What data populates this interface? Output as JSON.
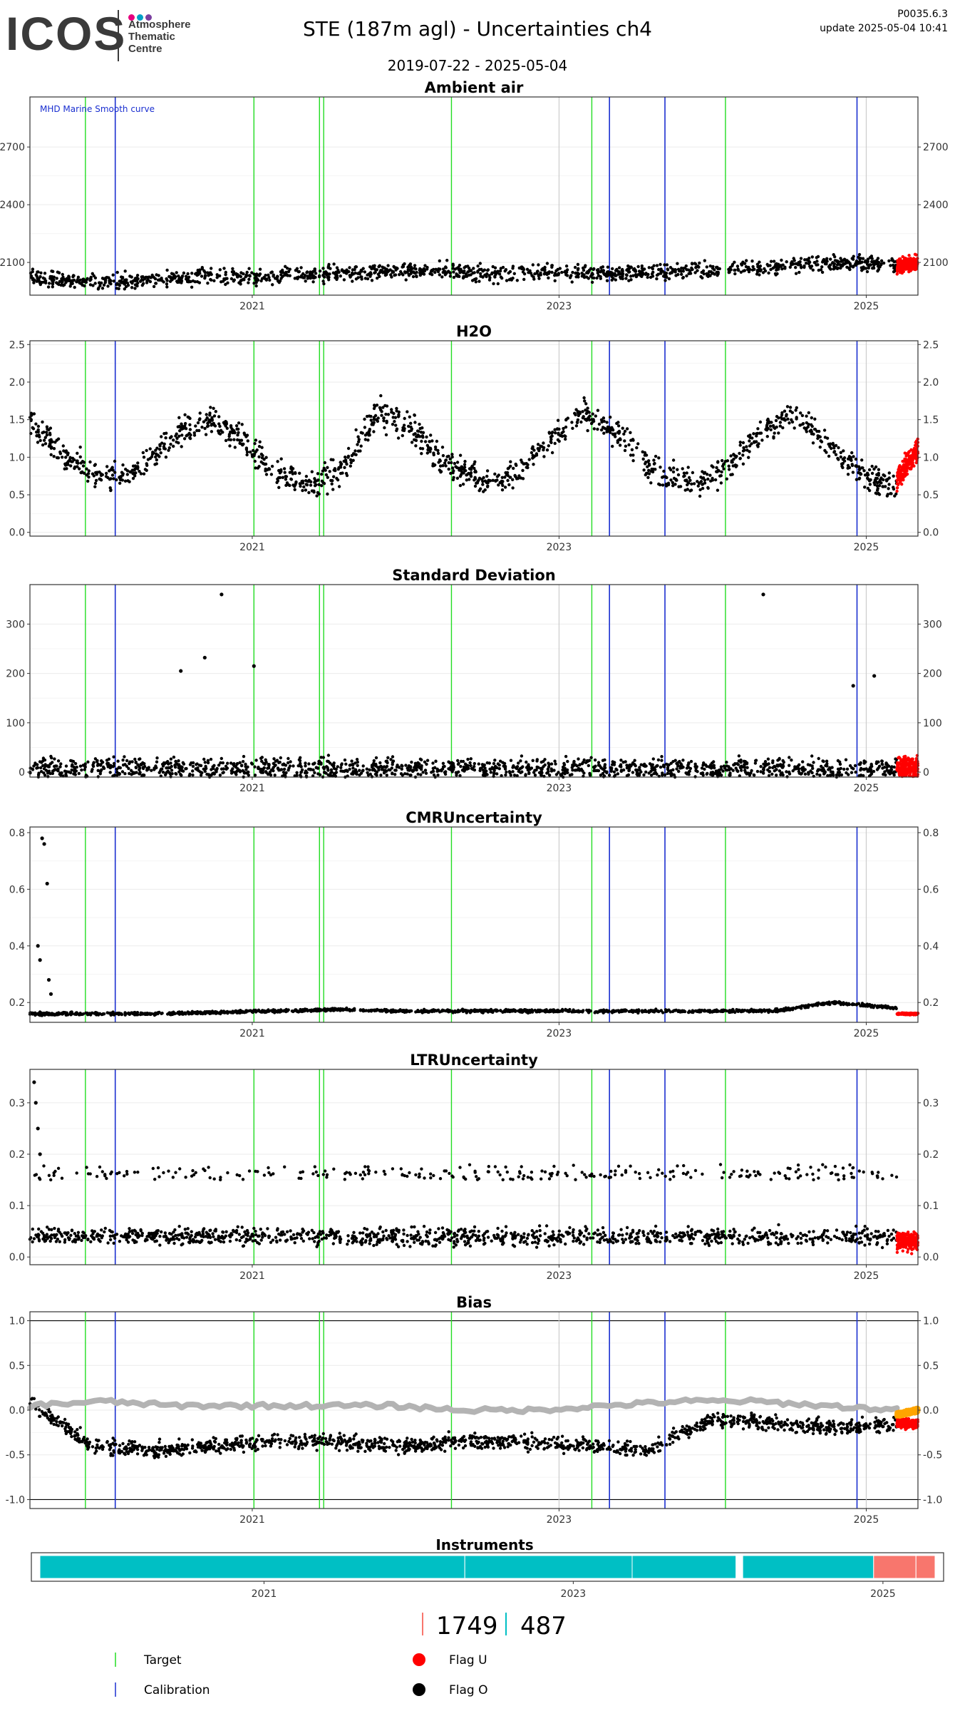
{
  "header": {
    "logo_text": "ICOS",
    "logo_subtitle": "Atmosphere\nThematic\nCentre",
    "title": "STE  (187m agl) - Uncertainties ch4",
    "date_range": "2019-07-22 - 2025-05-04",
    "version": "P0035.6.3",
    "update": "update  2025-05-04 10:41"
  },
  "colors": {
    "target_line": "#22dd22",
    "calibration_line": "#1a2fd0",
    "neutral_line": "#cccccc",
    "flag_o": "#000000",
    "flag_u": "#ff0000",
    "smooth_curve": "#b3b3b3",
    "bias_orange": "#ffa500",
    "instrument_teal": "#00bfc4",
    "instrument_salmon": "#f8766d",
    "logo_dots": [
      "#e6007e",
      "#00a0c6",
      "#7a3fa0"
    ]
  },
  "chart_data": [
    {
      "type": "scatter",
      "title": "Ambient air",
      "annotation": "MHD Marine Smooth curve",
      "y_ticks": [
        2100,
        2400,
        2700
      ],
      "ylim": [
        1930,
        2960
      ],
      "x_ticks": [
        "2021",
        "2023",
        "2025"
      ],
      "series": [
        {
          "name": "Flag O",
          "x_range": [
            "2019-07-22",
            "2025-03-15"
          ],
          "baseline": [
            2020,
            2000,
            2010,
            2030,
            2020,
            2040,
            2050,
            2060,
            2040,
            2050,
            2040,
            2050,
            2070,
            2080,
            2100,
            2090
          ],
          "spread": 120
        },
        {
          "name": "Flag U",
          "x_range": [
            "2025-03-15",
            "2025-05-04"
          ],
          "baseline": [
            2080,
            2100
          ],
          "spread": 110
        }
      ],
      "gaps": [
        [
          "2024-01-20",
          "2024-02-05"
        ]
      ]
    },
    {
      "type": "scatter",
      "title": "H2O",
      "y_ticks": [
        0.0,
        0.5,
        1.0,
        1.5,
        2.0,
        2.5
      ],
      "ylim": [
        -0.05,
        2.55
      ],
      "x_ticks": [
        "2021",
        "2023",
        "2025"
      ],
      "series": [
        {
          "name": "Flag O",
          "x_range": [
            "2019-07-22",
            "2025-03-15"
          ],
          "baseline": [
            1.5,
            1.0,
            0.75,
            0.8,
            1.2,
            1.5,
            1.3,
            0.8,
            0.65,
            0.85,
            1.6,
            1.4,
            0.9,
            0.7,
            0.75,
            1.25,
            1.6,
            1.3,
            0.8,
            0.65,
            0.8,
            1.3,
            1.6,
            1.2,
            0.75,
            0.6
          ],
          "spread": 0.55
        },
        {
          "name": "Flag U",
          "x_range": [
            "2025-03-15",
            "2025-05-04"
          ],
          "baseline": [
            0.7,
            1.1
          ],
          "spread": 0.45
        }
      ]
    },
    {
      "type": "scatter",
      "title": "Standard Deviation",
      "y_ticks": [
        0,
        100,
        200,
        300
      ],
      "ylim": [
        -10,
        380
      ],
      "x_ticks": [
        "2021",
        "2023",
        "2025"
      ],
      "series": [
        {
          "name": "Flag O",
          "x_range": [
            "2019-07-22",
            "2025-03-15"
          ],
          "baseline": [
            8
          ],
          "spread": 60
        },
        {
          "name": "Flag U",
          "x_range": [
            "2025-03-15",
            "2025-05-04"
          ],
          "baseline": [
            10
          ],
          "spread": 60
        }
      ],
      "outliers": [
        [
          "2020-10-20",
          360
        ],
        [
          "2020-09-10",
          232
        ],
        [
          "2020-07-15",
          205
        ],
        [
          "2021-01-05",
          215
        ],
        [
          "2024-05-01",
          360
        ],
        [
          "2024-12-01",
          175
        ],
        [
          "2025-01-20",
          195
        ]
      ]
    },
    {
      "type": "scatter",
      "title": "CMRUncertainty",
      "y_ticks": [
        0.2,
        0.4,
        0.6,
        0.8
      ],
      "ylim": [
        0.13,
        0.82
      ],
      "x_ticks": [
        "2021",
        "2023",
        "2025"
      ],
      "series": [
        {
          "name": "Flag O",
          "x_range": [
            "2019-07-22",
            "2025-03-15"
          ],
          "baseline": [
            0.16,
            0.16,
            0.16,
            0.165,
            0.17,
            0.175,
            0.17,
            0.17,
            0.17,
            0.17,
            0.17,
            0.17,
            0.17,
            0.2,
            0.18
          ],
          "spread": 0.015
        },
        {
          "name": "Flag U",
          "x_range": [
            "2025-03-15",
            "2025-05-04"
          ],
          "baseline": [
            0.16
          ],
          "spread": 0.01
        }
      ],
      "outliers": [
        [
          "2019-08-20",
          0.78
        ],
        [
          "2019-08-25",
          0.76
        ],
        [
          "2019-09-01",
          0.62
        ],
        [
          "2019-08-10",
          0.4
        ],
        [
          "2019-08-15",
          0.35
        ],
        [
          "2019-09-05",
          0.28
        ],
        [
          "2019-09-10",
          0.23
        ]
      ]
    },
    {
      "type": "scatter",
      "title": "LTRUncertainty",
      "y_ticks": [
        0.0,
        0.1,
        0.2,
        0.3
      ],
      "ylim": [
        -0.015,
        0.365
      ],
      "x_ticks": [
        "2021",
        "2023",
        "2025"
      ],
      "series": [
        {
          "name": "Flag O",
          "x_range": [
            "2019-07-22",
            "2025-03-15"
          ],
          "baseline": [
            0.04
          ],
          "spread": 0.05,
          "upper_band": [
            0.15,
            0.18
          ]
        },
        {
          "name": "Flag U",
          "x_range": [
            "2025-03-15",
            "2025-05-04"
          ],
          "baseline": [
            0.03
          ],
          "spread": 0.05
        }
      ],
      "outliers": [
        [
          "2019-08-01",
          0.34
        ],
        [
          "2019-08-05",
          0.3
        ],
        [
          "2019-08-10",
          0.25
        ],
        [
          "2019-08-15",
          0.2
        ]
      ]
    },
    {
      "type": "scatter",
      "title": "Bias",
      "y_ticks": [
        -1.0,
        -0.5,
        0.0,
        0.5,
        1.0
      ],
      "ylim": [
        -1.1,
        1.1
      ],
      "x_ticks": [
        "2021",
        "2023",
        "2025"
      ],
      "hlines": [
        1.0,
        -1.0
      ],
      "series": [
        {
          "name": "Flag O",
          "x_range": [
            "2019-07-22",
            "2025-03-15"
          ],
          "baseline": [
            0.1,
            -0.4,
            -0.45,
            -0.4,
            -0.35,
            -0.35,
            -0.4,
            -0.35,
            -0.35,
            -0.4,
            -0.45,
            -0.1,
            -0.15,
            -0.2,
            -0.15
          ],
          "spread": 0.25
        },
        {
          "name": "Flag U",
          "x_range": [
            "2025-03-15",
            "2025-05-04"
          ],
          "baseline": [
            -0.15
          ],
          "spread": 0.15
        },
        {
          "name": "smooth",
          "x_range": [
            "2019-07-22",
            "2025-03-15"
          ],
          "baseline": [
            0.05,
            0.1,
            0.05,
            0.05,
            0.05,
            0.05,
            0.0,
            0.0,
            0.05,
            0.1,
            0.1,
            0.05,
            0.0
          ]
        },
        {
          "name": "orange",
          "x_range": [
            "2025-03-15",
            "2025-05-04"
          ],
          "baseline": [
            -0.05,
            0.0
          ]
        }
      ]
    }
  ],
  "vlines": {
    "target": [
      "2019-12-01",
      "2021-01-05",
      "2021-06-10",
      "2021-06-20",
      "2022-04-20",
      "2023-03-20",
      "2024-02-01"
    ],
    "calibration": [
      "2020-02-10",
      "2023-05-01",
      "2023-09-10",
      "2024-12-10"
    ],
    "neutral": [
      "2023-01-01",
      "2025-01-01"
    ]
  },
  "instruments": {
    "title": "Instruments",
    "x_ticks": [
      "2021",
      "2023",
      "2025"
    ],
    "segments": [
      {
        "start": "2019-07-22",
        "end": "2022-04-20",
        "color": "teal"
      },
      {
        "start": "2022-04-20",
        "end": "2023-05-20",
        "color": "teal"
      },
      {
        "start": "2023-05-20",
        "end": "2024-01-20",
        "color": "teal"
      },
      {
        "start": "2024-02-05",
        "end": "2024-12-10",
        "color": "teal"
      },
      {
        "start": "2024-12-10",
        "end": "2025-03-20",
        "color": "salmon"
      },
      {
        "start": "2025-03-20",
        "end": "2025-05-04",
        "color": "salmon"
      }
    ],
    "counts": [
      {
        "value": "1749",
        "color": "salmon"
      },
      {
        "value": "487",
        "color": "teal"
      }
    ]
  },
  "legend": {
    "target": "Target",
    "calibration": "Calibration",
    "flag_u": "Flag U",
    "flag_o": "Flag O"
  }
}
